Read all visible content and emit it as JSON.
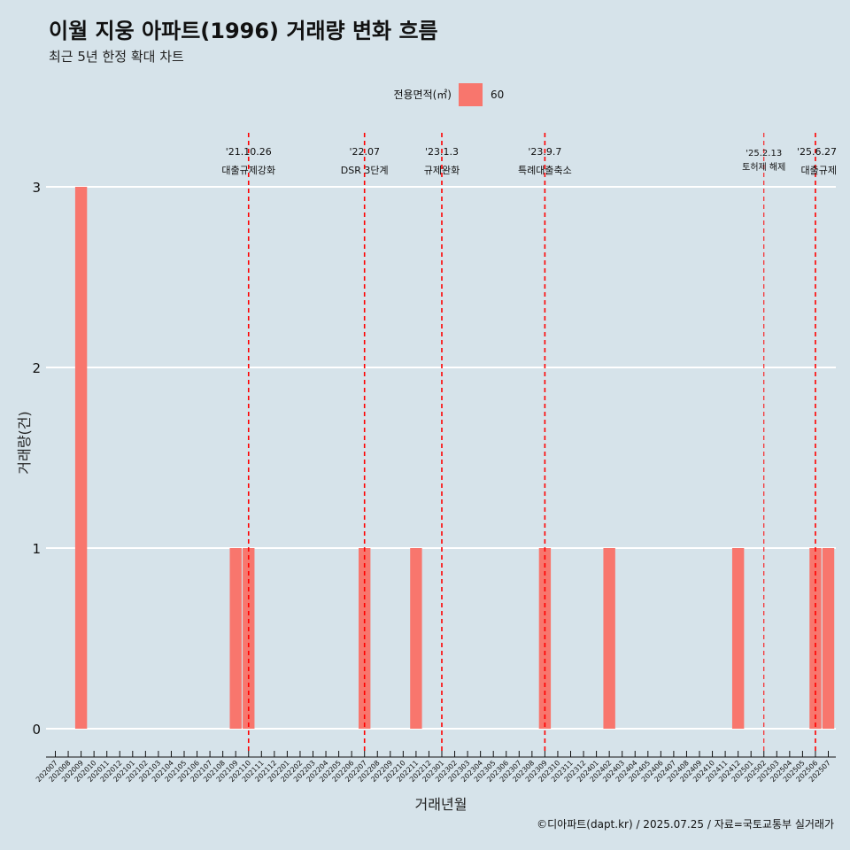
{
  "title": "이월 지웅 아파트(1996) 거래량 변화 흐름",
  "subtitle": "최근 5년 한정 확대 차트",
  "caption": "©디아파트(dapt.kr) / 2025.07.25 / 자료=국토교통부 실거래가",
  "legend": {
    "title": "전용면적(㎡)",
    "items": [
      {
        "label": "60",
        "color": "#f8766d"
      }
    ]
  },
  "chart_data": {
    "type": "bar",
    "xlabel": "거래년월",
    "ylabel": "거래량(건)",
    "ylim": [
      0,
      3
    ],
    "yticks": [
      0,
      1,
      2,
      3
    ],
    "grid": true,
    "legend_position": "top",
    "categories": [
      "202007",
      "202008",
      "202009",
      "202010",
      "202011",
      "202012",
      "202101",
      "202102",
      "202103",
      "202104",
      "202105",
      "202106",
      "202107",
      "202108",
      "202109",
      "202110",
      "202111",
      "202112",
      "202201",
      "202202",
      "202203",
      "202204",
      "202205",
      "202206",
      "202207",
      "202208",
      "202209",
      "202210",
      "202211",
      "202212",
      "202301",
      "202302",
      "202303",
      "202304",
      "202305",
      "202306",
      "202307",
      "202308",
      "202309",
      "202310",
      "202311",
      "202312",
      "202401",
      "202402",
      "202403",
      "202404",
      "202405",
      "202406",
      "202407",
      "202408",
      "202409",
      "202410",
      "202411",
      "202412",
      "202501",
      "202502",
      "202503",
      "202504",
      "202505",
      "202506",
      "202507"
    ],
    "series": [
      {
        "name": "60",
        "color": "#f8766d",
        "values": [
          0,
          0,
          3,
          0,
          0,
          0,
          0,
          0,
          0,
          0,
          0,
          0,
          0,
          0,
          1,
          1,
          0,
          0,
          0,
          0,
          0,
          0,
          0,
          0,
          1,
          0,
          0,
          0,
          1,
          0,
          0,
          0,
          0,
          0,
          0,
          0,
          0,
          0,
          1,
          0,
          0,
          0,
          0,
          1,
          0,
          0,
          0,
          0,
          0,
          0,
          0,
          0,
          0,
          1,
          0,
          0,
          0,
          0,
          0,
          1,
          1
        ]
      }
    ],
    "annotations": [
      {
        "date": "'21.10.26",
        "label": "대출규제강화",
        "at": "202110",
        "style": "dashed"
      },
      {
        "date": "'22.07",
        "label": "DSR 3단계",
        "at": "202207",
        "style": "dashed"
      },
      {
        "date": "'23.1.3",
        "label": "규제완화",
        "at": "202301",
        "style": "dashed"
      },
      {
        "date": "'23.9.7",
        "label": "특례대출축소",
        "at": "202309",
        "style": "dashed"
      },
      {
        "date": "'25.2.13",
        "label": "토허제 해제",
        "at": "202502",
        "style": "thin-dashed"
      },
      {
        "date": "'25.6.27",
        "label": "대출규제",
        "at": "202506",
        "style": "dashed"
      }
    ]
  }
}
